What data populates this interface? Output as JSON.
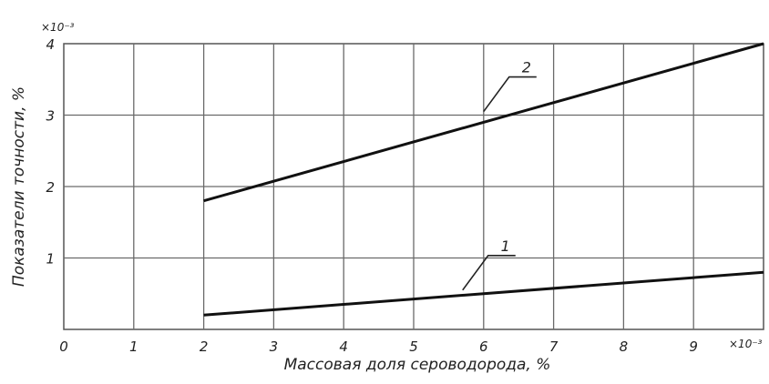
{
  "chart_data": {
    "type": "line",
    "title": "",
    "xlabel": "Массовая доля сероводорода, %",
    "ylabel": "Показатели точности, %",
    "x_multiplier": "×10⁻³",
    "y_multiplier": "×10⁻³",
    "xlim": [
      0,
      10
    ],
    "ylim": [
      0,
      4
    ],
    "x_ticks": [
      0,
      1,
      2,
      3,
      4,
      5,
      6,
      7,
      8,
      9
    ],
    "x_tick_labels": [
      "0",
      "1",
      "2",
      "3",
      "4",
      "5",
      "6",
      "7",
      "8",
      "9"
    ],
    "y_ticks": [
      1,
      2,
      3,
      4
    ],
    "y_tick_labels": [
      "1",
      "2",
      "3",
      "4"
    ],
    "grid": true,
    "legend": "none",
    "series": [
      {
        "name": "1",
        "x": [
          2,
          10
        ],
        "y": [
          0.2,
          0.8
        ],
        "color": "#111111"
      },
      {
        "name": "2",
        "x": [
          2,
          10
        ],
        "y": [
          1.8,
          4.0
        ],
        "color": "#111111"
      }
    ]
  }
}
